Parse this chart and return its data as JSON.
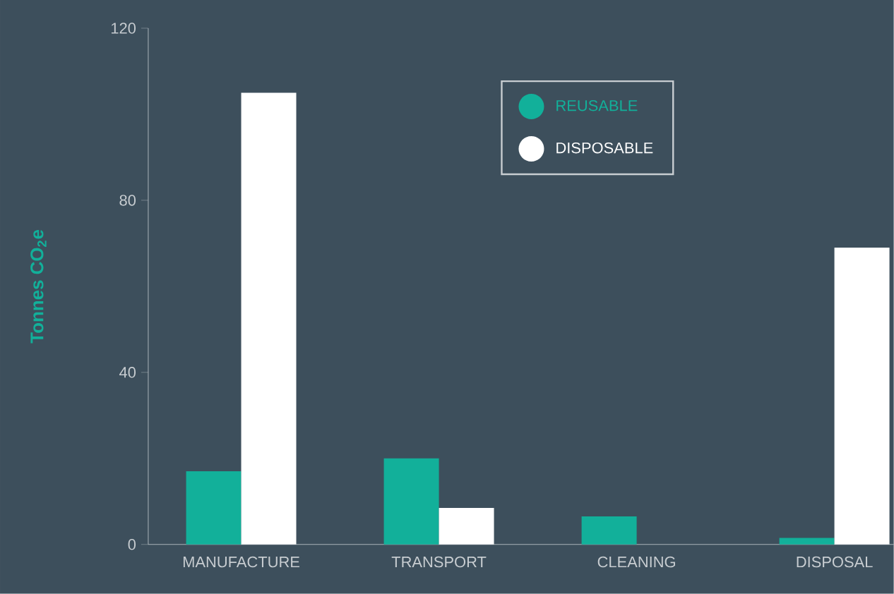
{
  "chart_data": {
    "type": "bar",
    "ylabel": "Tonnes CO$_{2}$e",
    "categories": [
      "MANUFACTURE",
      "TRANSPORT",
      "CLEANING",
      "DISPOSAL"
    ],
    "series": [
      {
        "name": "REUSABLE",
        "color": "#12b09a",
        "values": [
          17,
          20,
          6.5,
          1.5
        ]
      },
      {
        "name": "DISPOSABLE",
        "color": "#ffffff",
        "values": [
          105,
          8.5,
          0,
          69
        ]
      }
    ],
    "ylim": [
      0,
      120
    ],
    "yticks": [
      0,
      40,
      80,
      120
    ],
    "legend": "top right",
    "grid": false
  }
}
